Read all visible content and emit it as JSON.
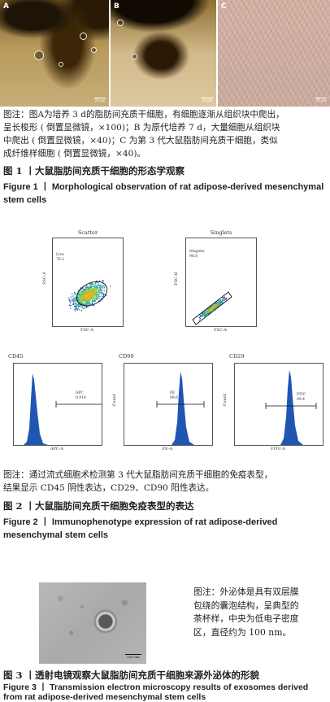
{
  "figure1": {
    "panels": [
      {
        "label": "A",
        "scale_text": "20 µm"
      },
      {
        "label": "B",
        "scale_text": "20 µm"
      },
      {
        "label": "C",
        "scale_text": "20 µm"
      }
    ],
    "note_lines": [
      "图注：图A为培养 3 d的脂肪间充质干细胞，有细胞逐渐从组织块中爬出，",
      "呈长梭形 ( 倒置显微镜，×100)；B 为原代培养 7 d，大量细胞从组织块",
      "中爬出 ( 倒置显微镜，×40)；C 为第 3 代大鼠脂肪间充质干细胞，类似",
      "成纤维样细胞 ( 倒置显微镜，×40)。"
    ],
    "title_cn": "图 1 丨大鼠脂肪间充质干细胞的形态学观察",
    "title_en": "Figure 1 丨 Morphological observation of rat adipose-derived mesenchymal stem cells"
  },
  "figure2": {
    "scatter": {
      "title": "Scatter",
      "xlabel": "FSC-A",
      "ylabel": "SSC-A",
      "gate_name": "Live",
      "gate_value": "76.2",
      "xticks": [
        "0",
        "200K",
        "400K",
        "600K",
        "800K",
        "1.0M"
      ],
      "yticks": [
        "0",
        "200K",
        "400K",
        "600K",
        "800K",
        "1.0M"
      ]
    },
    "singlets": {
      "title": "Singlets",
      "xlabel": "FSC-A",
      "ylabel": "FSC-H",
      "gate_name": "Singlets",
      "gate_value": "98.8",
      "xticks": [
        "0",
        "200K",
        "400K",
        "600K",
        "800K",
        "1.0M"
      ],
      "yticks": [
        "0",
        "200K",
        "400K",
        "600K",
        "800K",
        "1.0M"
      ]
    },
    "histograms": [
      {
        "title": "CD45",
        "xlabel": "APC-A",
        "ylabel": "Count",
        "gate_name": "APC",
        "gate_value": "0.914"
      },
      {
        "title": "CD90",
        "xlabel": "PE-A",
        "ylabel": "Count",
        "gate_name": "PE",
        "gate_value": "99.6"
      },
      {
        "title": "CD29",
        "xlabel": "FITC-A",
        "ylabel": "Count",
        "gate_name": "FITC",
        "gate_value": "99.4"
      }
    ],
    "note_lines": [
      "图注：通过流式细胞术检测第 3 代大鼠脂肪间充质干细胞的免疫表型，",
      "结果显示 CD45 阴性表达，CD29、CD90 阳性表达。"
    ],
    "title_cn": "图 2 丨大鼠脂肪间充质干细胞免疫表型的表达",
    "title_en": "Figure 2 丨 Immunophenotype expression of rat adipose-derived mesenchymal stem cells"
  },
  "figure3": {
    "scale_text": "100 nm",
    "note_lines": [
      "图注：外泌体是具有双层膜",
      "包绕的囊泡结构，呈典型的",
      "茶杯样，中央为低电子密度",
      "区，直径约为 100 nm。"
    ],
    "title_cn": "图 3 丨透射电镜观察大鼠脂肪间充质干细胞来源外泌体的形貌",
    "title_en": "Figure 3 丨 Transmission electron microscopy results of exosomes derived from rat adipose-derived mesenchymal stem cells"
  }
}
